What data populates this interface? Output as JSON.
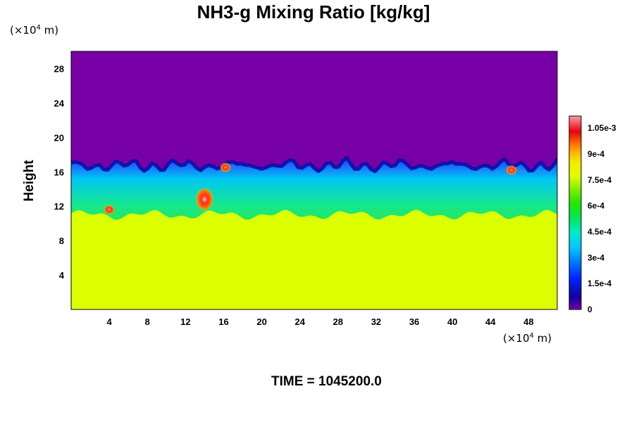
{
  "chart_data": {
    "type": "heatmap",
    "title": "NH3-g Mixing Ratio [kg/kg]",
    "ylabel": "Height",
    "xlabel": "",
    "x_unit": {
      "prefix": "(×10",
      "exp": "4",
      "suffix": " m)"
    },
    "y_unit": {
      "prefix": "(×10",
      "exp": "4",
      "suffix": " m)"
    },
    "xlim": [
      0,
      51
    ],
    "ylim": [
      0,
      30
    ],
    "x_ticks": [
      4,
      8,
      12,
      16,
      20,
      24,
      28,
      32,
      36,
      40,
      44,
      48
    ],
    "y_ticks": [
      4,
      8,
      12,
      16,
      20,
      24,
      28
    ],
    "colorbar": {
      "range": [
        0,
        0.00112
      ],
      "labels": [
        {
          "value": 0,
          "text": "0"
        },
        {
          "value": 0.00015,
          "text": "1.5e-4"
        },
        {
          "value": 0.0003,
          "text": "3e-4"
        },
        {
          "value": 0.00045,
          "text": "4.5e-4"
        },
        {
          "value": 0.0006,
          "text": "6e-4"
        },
        {
          "value": 0.00075,
          "text": "7.5e-4"
        },
        {
          "value": 0.0009,
          "text": "9e-4"
        },
        {
          "value": 0.00105,
          "text": "1.05e-3"
        }
      ]
    },
    "regions": {
      "lower_layer_value": 0.00078,
      "lower_layer_top_height": 11,
      "upper_layer_value": 0,
      "mixing_layer_top_height": 17.5
    },
    "hotspots": [
      {
        "x": 14,
        "y": 12.8,
        "value": 0.00105
      },
      {
        "x": 16.2,
        "y": 16.5,
        "value": 0.001
      },
      {
        "x": 46.2,
        "y": 16.2,
        "value": 0.001
      },
      {
        "x": 4,
        "y": 11.6,
        "value": 0.0009
      }
    ],
    "grid": false,
    "legend": "colorbar-right"
  },
  "time": "TIME = 1045200.0",
  "colors": {
    "background": "#ffffff",
    "upper_region": "#7600a6",
    "lower_region": "#dcff00",
    "hotspot": "#e3001b"
  }
}
